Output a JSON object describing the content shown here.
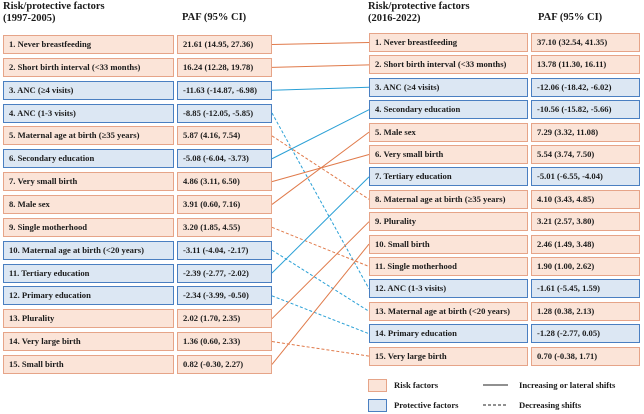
{
  "left_panel": {
    "title_line1": "Risk/protective factors",
    "title_line2": "(1997-2005)",
    "paf_header": "PAF (95% CI)",
    "rows": [
      {
        "label": "1. Never breastfeeding",
        "paf": "21.61 (14.95, 27.36)",
        "type": "risk"
      },
      {
        "label": "2. Short birth interval (<33 months)",
        "paf": "16.24 (12.28, 19.78)",
        "type": "risk"
      },
      {
        "label": "3. ANC  (≥4 visits)",
        "paf": "-11.63 (-14.87, -6.98)",
        "type": "protective"
      },
      {
        "label": "4. ANC (1-3 visits)",
        "paf": "-8.85 (-12.05, -5.85)",
        "type": "protective"
      },
      {
        "label": "5. Maternal age at birth (≥35 years)",
        "paf": "5.87 (4.16, 7.54)",
        "type": "risk"
      },
      {
        "label": "6. Secondary education",
        "paf": "-5.08 (-6.04, -3.73)",
        "type": "protective"
      },
      {
        "label": "7. Very small birth",
        "paf": "4.86 (3.11, 6.50)",
        "type": "risk"
      },
      {
        "label": "8. Male sex",
        "paf": "3.91 (0.60, 7.16)",
        "type": "risk"
      },
      {
        "label": "9. Single motherhood",
        "paf": "3.20 (1.85, 4.55)",
        "type": "risk"
      },
      {
        "label": "10. Maternal age at birth (<20 years)",
        "paf": "-3.11 (-4.04, -2.17)",
        "type": "protective"
      },
      {
        "label": "11. Tertiary education",
        "paf": "-2.39 (-2.77, -2.02)",
        "type": "protective"
      },
      {
        "label": "12. Primary education",
        "paf": "-2.34 (-3.99, -0.50)",
        "type": "protective"
      },
      {
        "label": "13. Plurality",
        "paf": "2.02 (1.70, 2.35)",
        "type": "risk"
      },
      {
        "label": "14. Very large birth",
        "paf": "1.36 (0.60, 2.33)",
        "type": "risk"
      },
      {
        "label": "15. Small birth",
        "paf": "0.82 (-0.30, 2.27)",
        "type": "risk"
      }
    ]
  },
  "right_panel": {
    "title_line1": "Risk/protective factors",
    "title_line2": "(2016-2022)",
    "paf_header": "PAF (95% CI)",
    "rows": [
      {
        "label": "1. Never breastfeeding",
        "paf": "37.10 (32.54, 41.35)",
        "type": "risk"
      },
      {
        "label": "2. Short birth interval (<33 months)",
        "paf": "13.78 (11.30, 16.11)",
        "type": "risk"
      },
      {
        "label": "3. ANC (≥4 visits)",
        "paf": "-12.06 (-18.42, -6.02)",
        "type": "protective"
      },
      {
        "label": "4. Secondary education",
        "paf": "-10.56 (-15.82, -5.66)",
        "type": "protective"
      },
      {
        "label": "5. Male sex",
        "paf": "7.29 (3.32, 11.08)",
        "type": "risk"
      },
      {
        "label": "6. Very small birth",
        "paf": "5.54 (3.74, 7.50)",
        "type": "risk"
      },
      {
        "label": "7. Tertiary education",
        "paf": "-5.01 (-6.55, -4.04)",
        "type": "protective"
      },
      {
        "label": "8. Maternal age at birth (≥35 years)",
        "paf": "4.10 (3.43, 4.85)",
        "type": "risk"
      },
      {
        "label": "9. Plurality",
        "paf": "3.21 (2.57, 3.80)",
        "type": "risk"
      },
      {
        "label": "10. Small birth",
        "paf": "2.46 (1.49, 3.48)",
        "type": "risk"
      },
      {
        "label": "11. Single motherhood",
        "paf": "1.90 (1.00, 2.62)",
        "type": "risk"
      },
      {
        "label": "12. ANC (1-3 visits)",
        "paf": "-1.61 (-5.45, 1.59)",
        "type": "protective"
      },
      {
        "label": "13. Maternal age at birth (<20 years)",
        "paf": "1.28 (0.38, 2.13)",
        "type": "risk"
      },
      {
        "label": "14. Primary education",
        "paf": "-1.28 (-2.77, 0.05)",
        "type": "protective"
      },
      {
        "label": "15. Very large birth",
        "paf": "0.70 (-0.38, 1.71)",
        "type": "risk"
      }
    ]
  },
  "connections": [
    {
      "from": 1,
      "to": 1,
      "style": "solid",
      "factor": "risk"
    },
    {
      "from": 2,
      "to": 2,
      "style": "solid",
      "factor": "risk"
    },
    {
      "from": 3,
      "to": 3,
      "style": "solid",
      "factor": "protective"
    },
    {
      "from": 4,
      "to": 12,
      "style": "dashed",
      "factor": "protective"
    },
    {
      "from": 5,
      "to": 8,
      "style": "dashed",
      "factor": "risk"
    },
    {
      "from": 6,
      "to": 4,
      "style": "solid",
      "factor": "protective"
    },
    {
      "from": 7,
      "to": 6,
      "style": "solid",
      "factor": "risk"
    },
    {
      "from": 8,
      "to": 5,
      "style": "solid",
      "factor": "risk"
    },
    {
      "from": 9,
      "to": 11,
      "style": "dashed",
      "factor": "risk"
    },
    {
      "from": 10,
      "to": 13,
      "style": "dashed",
      "factor": "protective"
    },
    {
      "from": 11,
      "to": 7,
      "style": "solid",
      "factor": "protective"
    },
    {
      "from": 12,
      "to": 14,
      "style": "dashed",
      "factor": "protective"
    },
    {
      "from": 13,
      "to": 9,
      "style": "solid",
      "factor": "risk"
    },
    {
      "from": 14,
      "to": 15,
      "style": "dashed",
      "factor": "risk"
    },
    {
      "from": 15,
      "to": 10,
      "style": "solid",
      "factor": "risk"
    }
  ],
  "legend": {
    "risk_label": "Risk factors",
    "protective_label": "Protective factors",
    "solid_label": "Increasing or lateral shifts",
    "dashed_label": "Decreasing shifts"
  },
  "colors": {
    "risk_fill": "#fbe4d8",
    "risk_border": "#e6a488",
    "protective_fill": "#dce7f3",
    "protective_border": "#4a7fc1",
    "risk_line": "#e07a4a",
    "protective_line": "#2aa0d6"
  }
}
